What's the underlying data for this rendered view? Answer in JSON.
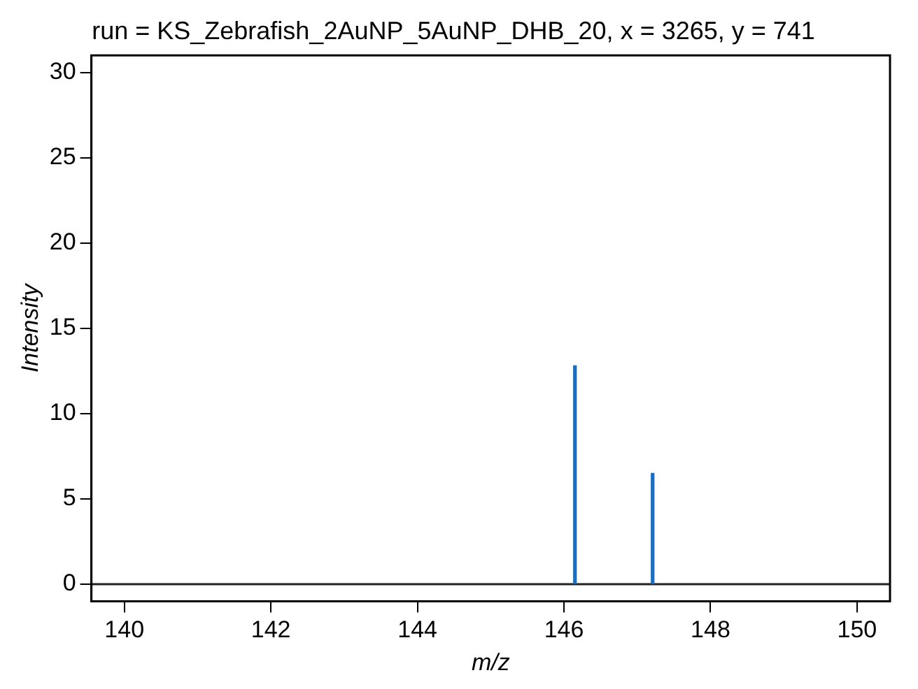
{
  "chart_data": {
    "type": "bar",
    "title": "run = KS_Zebrafish_2AuNP_5AuNP_DHB_20, x = 3265, y = 741",
    "xlabel": "m/z",
    "ylabel": "Intensity",
    "x": [
      146.15,
      147.21
    ],
    "values": [
      12.8,
      6.5
    ],
    "color": "#1a6fc4",
    "xlim": [
      139.55,
      150.45
    ],
    "xticks": [
      140,
      142,
      144,
      146,
      148,
      150
    ],
    "ylim": [
      -1,
      31
    ],
    "yticks": [
      0,
      5,
      10,
      15,
      20,
      25,
      30
    ],
    "ref_lines": [
      {
        "axis": "y",
        "value": 0,
        "color": "#222222"
      }
    ],
    "grid": false,
    "legend": false
  }
}
